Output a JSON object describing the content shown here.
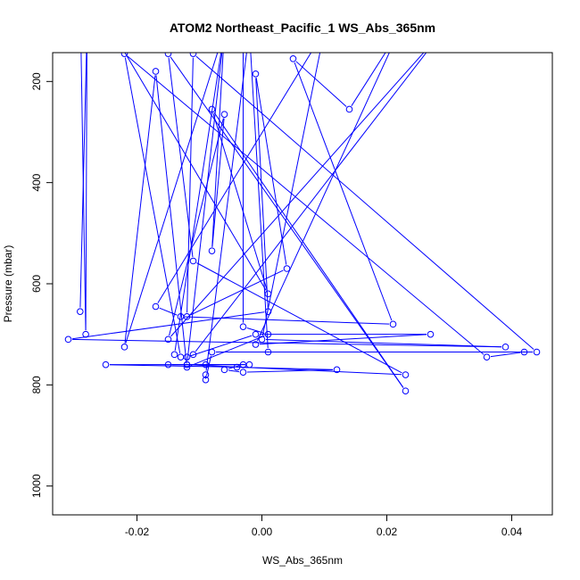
{
  "chart_data": {
    "type": "line",
    "title": "ATOM2 Northeast_Pacific_1 WS_Abs_365nm",
    "xlabel": "WS_Abs_365nm",
    "ylabel": "Pressure (mbar)",
    "xlim": [
      -0.0335,
      0.0465
    ],
    "ylim": [
      1057,
      143
    ],
    "y_reversed": true,
    "xticks": [
      -0.02,
      0.0,
      0.02,
      0.04
    ],
    "xtick_labels": [
      "-0.02",
      "0.00",
      "0.02",
      "0.04"
    ],
    "yticks": [
      200,
      400,
      600,
      800,
      1000
    ],
    "ytick_labels": [
      "200",
      "400",
      "600",
      "800",
      "1000"
    ],
    "grid": false,
    "series": [
      {
        "color": "#0000ff",
        "marker": "open-circle",
        "points": [
          {
            "x": -0.0291,
            "y": 655
          },
          {
            "x": -0.028,
            "y": 100
          },
          {
            "x": -0.0282,
            "y": 700
          },
          {
            "x": -0.029,
            "y": 100
          },
          {
            "x": -0.024,
            "y": 100
          },
          {
            "x": 0.001,
            "y": 620
          },
          {
            "x": -0.008,
            "y": 255
          },
          {
            "x": 0.023,
            "y": 812
          },
          {
            "x": -0.015,
            "y": 145
          },
          {
            "x": -0.011,
            "y": 555
          },
          {
            "x": 0.023,
            "y": 780
          },
          {
            "x": -0.012,
            "y": 760
          },
          {
            "x": -0.009,
            "y": 760
          },
          {
            "x": -0.003,
            "y": 760
          },
          {
            "x": -0.006,
            "y": 770
          },
          {
            "x": -0.003,
            "y": 775
          },
          {
            "x": 0.012,
            "y": 770
          },
          {
            "x": -0.004,
            "y": 765
          },
          {
            "x": -0.025,
            "y": 760
          },
          {
            "x": -0.002,
            "y": 760
          },
          {
            "x": -0.015,
            "y": 760
          },
          {
            "x": -0.012,
            "y": 760
          },
          {
            "x": -0.006,
            "y": 100
          },
          {
            "x": -0.014,
            "y": 740
          },
          {
            "x": -0.013,
            "y": 745
          },
          {
            "x": -0.022,
            "y": 145
          },
          {
            "x": 0.036,
            "y": 745
          },
          {
            "x": 0.042,
            "y": 735
          },
          {
            "x": -0.008,
            "y": 735
          },
          {
            "x": -0.009,
            "y": 790
          },
          {
            "x": -0.009,
            "y": 780
          },
          {
            "x": -0.002,
            "y": 100
          },
          {
            "x": 0.001,
            "y": 735
          },
          {
            "x": 0.044,
            "y": 735
          },
          {
            "x": -0.011,
            "y": 145
          },
          {
            "x": -0.012,
            "y": 665
          },
          {
            "x": 0.004,
            "y": 570
          },
          {
            "x": -0.001,
            "y": 185
          },
          {
            "x": 0.001,
            "y": 655
          },
          {
            "x": -0.031,
            "y": 710
          },
          {
            "x": 0.039,
            "y": 725
          },
          {
            "x": 0.0,
            "y": 710
          },
          {
            "x": 0.01,
            "y": 100
          },
          {
            "x": -0.017,
            "y": 645
          },
          {
            "x": -0.013,
            "y": 665
          },
          {
            "x": 0.021,
            "y": 680
          },
          {
            "x": 0.005,
            "y": 155
          },
          {
            "x": 0.014,
            "y": 255
          },
          {
            "x": 0.022,
            "y": 100
          },
          {
            "x": -0.001,
            "y": 720
          },
          {
            "x": 0.027,
            "y": 700
          },
          {
            "x": -0.001,
            "y": 700
          },
          {
            "x": -0.012,
            "y": 745
          },
          {
            "x": -0.011,
            "y": 740
          },
          {
            "x": 0.029,
            "y": 100
          },
          {
            "x": -0.015,
            "y": 710
          },
          {
            "x": -0.006,
            "y": 265
          },
          {
            "x": -0.008,
            "y": 535
          },
          {
            "x": -0.006,
            "y": 100
          },
          {
            "x": -0.022,
            "y": 725
          },
          {
            "x": -0.017,
            "y": 180
          },
          {
            "x": -0.012,
            "y": 765
          },
          {
            "x": 0.001,
            "y": 700
          },
          {
            "x": -0.003,
            "y": 685
          },
          {
            "x": -0.003,
            "y": 100
          },
          {
            "x": -0.004,
            "y": 100
          },
          {
            "x": 0.006,
            "y": 100
          }
        ]
      }
    ]
  }
}
